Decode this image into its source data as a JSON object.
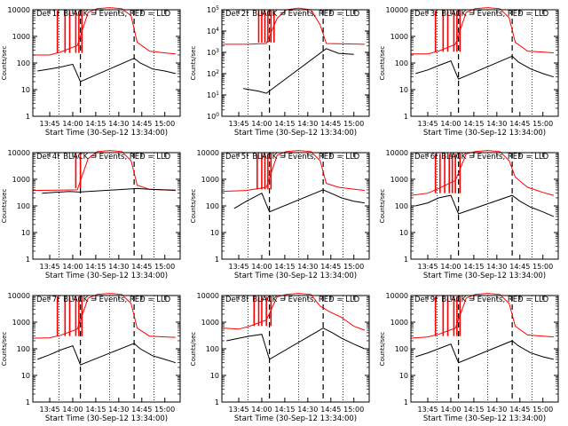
{
  "panel_title_suffix": "BLACK = Events, RED = LLD",
  "start_time": "Start Time (30-Sep-12 13:34:00)",
  "ylabel": "Counts/sec",
  "colors": {
    "events": "#000000",
    "lld": "#ff0000",
    "background": "#ffffff"
  },
  "chart_data": [
    {
      "type": "line",
      "title": "Det 1f",
      "xlabel": "Start Time (30-Sep-12 13:34:00)",
      "ylabel": "Counts/sec",
      "yscale": "log",
      "ylim": [
        1,
        10000
      ],
      "xlim": [
        "13:34",
        "15:10"
      ],
      "y_ticks": [
        "1",
        "10",
        "100",
        "1000",
        "10000"
      ],
      "x_ticks": [
        "13:45",
        "14:00",
        "14:15",
        "14:30",
        "14:45",
        "15:00"
      ],
      "dotted_markers": [
        "13:51",
        "14:24",
        "14:53"
      ],
      "dashed_markers": [
        "14:05",
        "14:40"
      ],
      "lld_series": [
        [
          "13:34",
          200
        ],
        [
          "13:45",
          200
        ],
        [
          "13:52",
          260
        ],
        [
          "14:03",
          450
        ],
        [
          "14:10",
          8000
        ],
        [
          "14:16",
          11000
        ],
        [
          "14:24",
          12000
        ],
        [
          "14:32",
          11000
        ],
        [
          "14:38",
          6000
        ],
        [
          "14:42",
          600
        ],
        [
          "14:50",
          280
        ],
        [
          "15:00",
          240
        ],
        [
          "15:07",
          220
        ]
      ],
      "events_series": [
        [
          "13:37",
          50
        ],
        [
          "13:45",
          60
        ],
        [
          "13:52",
          70
        ],
        [
          "14:00",
          90
        ],
        [
          "14:05",
          20
        ],
        [
          "14:40",
          150
        ],
        [
          "14:44",
          100
        ],
        [
          "14:52",
          60
        ],
        [
          "15:00",
          50
        ],
        [
          "15:07",
          40
        ]
      ],
      "lld_spikes": [
        "13:50",
        "13:55",
        "13:58",
        "14:02",
        "14:04",
        "14:06"
      ]
    },
    {
      "type": "line",
      "title": "Det 2f",
      "xlabel": "Start Time (30-Sep-12 13:34:00)",
      "ylabel": "Counts/sec",
      "yscale": "log",
      "ylim": [
        1,
        100000
      ],
      "xlim": [
        "13:34",
        "15:10"
      ],
      "y_ticks": [
        "10^0",
        "10^1",
        "10^2",
        "10^3",
        "10^4",
        "10^5"
      ],
      "x_ticks": [
        "13:45",
        "14:00",
        "14:15",
        "14:30",
        "14:45",
        "15:00"
      ],
      "dotted_markers": [
        "13:51",
        "14:24",
        "14:53"
      ],
      "dashed_markers": [
        "14:05",
        "14:40"
      ],
      "lld_series": [
        [
          "13:34",
          2400
        ],
        [
          "13:50",
          2400
        ],
        [
          "14:03",
          2600
        ],
        [
          "14:10",
          40000
        ],
        [
          "14:16",
          100000
        ],
        [
          "14:24",
          120000
        ],
        [
          "14:32",
          100000
        ],
        [
          "14:38",
          20000
        ],
        [
          "14:42",
          2600
        ],
        [
          "15:07",
          2400
        ]
      ],
      "events_series": [
        [
          "13:48",
          20
        ],
        [
          "13:58",
          15
        ],
        [
          "14:03",
          12
        ],
        [
          "14:42",
          1500
        ],
        [
          "14:50",
          900
        ],
        [
          "15:00",
          800
        ]
      ],
      "lld_spikes": [
        "13:58",
        "14:00",
        "14:02",
        "14:04",
        "14:06",
        "14:08"
      ]
    },
    {
      "type": "line",
      "title": "Det 3f",
      "xlabel": "Start Time (30-Sep-12 13:34:00)",
      "ylabel": "Counts/sec",
      "yscale": "log",
      "ylim": [
        1,
        10000
      ],
      "xlim": [
        "13:34",
        "15:10"
      ],
      "y_ticks": [
        "1",
        "10",
        "100",
        "1000",
        "10000"
      ],
      "x_ticks": [
        "13:45",
        "14:00",
        "14:15",
        "14:30",
        "14:45",
        "15:00"
      ],
      "dotted_markers": [
        "13:51",
        "14:24",
        "14:53"
      ],
      "dashed_markers": [
        "14:05",
        "14:40"
      ],
      "lld_series": [
        [
          "13:34",
          220
        ],
        [
          "13:45",
          220
        ],
        [
          "13:52",
          280
        ],
        [
          "14:03",
          500
        ],
        [
          "14:10",
          8000
        ],
        [
          "14:16",
          11000
        ],
        [
          "14:24",
          12000
        ],
        [
          "14:32",
          11000
        ],
        [
          "14:38",
          5000
        ],
        [
          "14:42",
          600
        ],
        [
          "14:50",
          280
        ],
        [
          "15:00",
          260
        ],
        [
          "15:07",
          240
        ]
      ],
      "events_series": [
        [
          "13:37",
          40
        ],
        [
          "13:45",
          55
        ],
        [
          "13:52",
          80
        ],
        [
          "14:00",
          120
        ],
        [
          "14:05",
          25
        ],
        [
          "14:40",
          180
        ],
        [
          "14:44",
          110
        ],
        [
          "14:52",
          60
        ],
        [
          "15:00",
          40
        ],
        [
          "15:07",
          30
        ]
      ],
      "lld_spikes": [
        "13:50",
        "13:55",
        "13:58",
        "14:02",
        "14:04",
        "14:06"
      ]
    },
    {
      "type": "line",
      "title": "Det 4f",
      "xlabel": "Start Time (30-Sep-12 13:34:00)",
      "ylabel": "Counts/sec",
      "yscale": "log",
      "ylim": [
        1,
        10000
      ],
      "xlim": [
        "13:34",
        "15:10"
      ],
      "y_ticks": [
        "1",
        "10",
        "100",
        "1000",
        "10000"
      ],
      "x_ticks": [
        "13:45",
        "14:00",
        "14:15",
        "14:30",
        "14:45",
        "15:00"
      ],
      "dotted_markers": [
        "13:51",
        "14:24",
        "14:53"
      ],
      "dashed_markers": [
        "14:05",
        "14:40"
      ],
      "lld_series": [
        [
          "13:34",
          380
        ],
        [
          "13:50",
          390
        ],
        [
          "14:03",
          400
        ],
        [
          "14:10",
          6000
        ],
        [
          "14:16",
          11000
        ],
        [
          "14:24",
          12000
        ],
        [
          "14:32",
          11000
        ],
        [
          "14:38",
          5000
        ],
        [
          "14:42",
          600
        ],
        [
          "14:50",
          420
        ],
        [
          "15:07",
          380
        ]
      ],
      "events_series": [
        [
          "13:40",
          300
        ],
        [
          "13:48",
          320
        ],
        [
          "13:58",
          350
        ],
        [
          "14:04",
          330
        ],
        [
          "14:42",
          450
        ],
        [
          "14:50",
          420
        ],
        [
          "15:00",
          400
        ],
        [
          "15:07",
          390
        ]
      ],
      "lld_spikes": [
        "14:02",
        "14:05"
      ]
    },
    {
      "type": "line",
      "title": "Det 5f",
      "xlabel": "Start Time (30-Sep-12 13:34:00)",
      "ylabel": "Counts/sec",
      "yscale": "log",
      "ylim": [
        1,
        10000
      ],
      "xlim": [
        "13:34",
        "15:10"
      ],
      "y_ticks": [
        "1",
        "10",
        "100",
        "1000",
        "10000"
      ],
      "x_ticks": [
        "13:45",
        "14:00",
        "14:15",
        "14:30",
        "14:45",
        "15:00"
      ],
      "dotted_markers": [
        "13:51",
        "14:24",
        "14:53"
      ],
      "dashed_markers": [
        "14:05",
        "14:40"
      ],
      "lld_series": [
        [
          "13:34",
          350
        ],
        [
          "13:50",
          380
        ],
        [
          "14:03",
          500
        ],
        [
          "14:10",
          8000
        ],
        [
          "14:16",
          11000
        ],
        [
          "14:24",
          12000
        ],
        [
          "14:32",
          11000
        ],
        [
          "14:38",
          5000
        ],
        [
          "14:42",
          700
        ],
        [
          "14:50",
          500
        ],
        [
          "15:07",
          380
        ]
      ],
      "events_series": [
        [
          "13:42",
          80
        ],
        [
          "13:50",
          150
        ],
        [
          "14:00",
          300
        ],
        [
          "14:05",
          60
        ],
        [
          "14:40",
          400
        ],
        [
          "14:45",
          300
        ],
        [
          "14:52",
          200
        ],
        [
          "15:00",
          150
        ],
        [
          "15:07",
          130
        ]
      ],
      "lld_spikes": [
        "13:57",
        "14:00",
        "14:02",
        "14:04",
        "14:06"
      ]
    },
    {
      "type": "line",
      "title": "Det 6f",
      "xlabel": "Start Time (30-Sep-12 13:34:00)",
      "ylabel": "Counts/sec",
      "yscale": "log",
      "ylim": [
        1,
        10000
      ],
      "xlim": [
        "13:34",
        "15:10"
      ],
      "y_ticks": [
        "1",
        "10",
        "100",
        "1000",
        "10000"
      ],
      "x_ticks": [
        "13:45",
        "14:00",
        "14:15",
        "14:30",
        "14:45",
        "15:00"
      ],
      "dotted_markers": [
        "13:51",
        "14:24",
        "14:53"
      ],
      "dashed_markers": [
        "14:05",
        "14:40"
      ],
      "lld_series": [
        [
          "13:34",
          250
        ],
        [
          "13:45",
          300
        ],
        [
          "13:52",
          450
        ],
        [
          "14:03",
          900
        ],
        [
          "14:10",
          9000
        ],
        [
          "14:16",
          11000
        ],
        [
          "14:24",
          12000
        ],
        [
          "14:32",
          11000
        ],
        [
          "14:38",
          5000
        ],
        [
          "14:42",
          1200
        ],
        [
          "14:50",
          500
        ],
        [
          "15:00",
          320
        ],
        [
          "15:07",
          250
        ]
      ],
      "events_series": [
        [
          "13:37",
          100
        ],
        [
          "13:45",
          130
        ],
        [
          "13:52",
          200
        ],
        [
          "14:00",
          250
        ],
        [
          "14:05",
          50
        ],
        [
          "14:40",
          250
        ],
        [
          "14:45",
          150
        ],
        [
          "14:52",
          90
        ],
        [
          "15:00",
          60
        ],
        [
          "15:07",
          40
        ]
      ],
      "lld_spikes": [
        "13:50",
        "13:53",
        "13:56",
        "13:59",
        "14:01",
        "14:03",
        "14:06"
      ]
    },
    {
      "type": "line",
      "title": "Det 7f",
      "xlabel": "Start Time (30-Sep-12 13:34:00)",
      "ylabel": "Counts/sec",
      "yscale": "log",
      "ylim": [
        1,
        10000
      ],
      "xlim": [
        "13:34",
        "15:10"
      ],
      "y_ticks": [
        "1",
        "10",
        "100",
        "1000",
        "10000"
      ],
      "x_ticks": [
        "13:45",
        "14:00",
        "14:15",
        "14:30",
        "14:45",
        "15:00"
      ],
      "dotted_markers": [
        "13:51",
        "14:24",
        "14:53"
      ],
      "dashed_markers": [
        "14:05",
        "14:40"
      ],
      "lld_series": [
        [
          "13:34",
          250
        ],
        [
          "13:45",
          260
        ],
        [
          "13:52",
          320
        ],
        [
          "14:03",
          550
        ],
        [
          "14:10",
          8000
        ],
        [
          "14:16",
          11000
        ],
        [
          "14:24",
          12000
        ],
        [
          "14:32",
          11000
        ],
        [
          "14:38",
          5000
        ],
        [
          "14:42",
          600
        ],
        [
          "14:50",
          300
        ],
        [
          "15:00",
          280
        ],
        [
          "15:07",
          270
        ]
      ],
      "events_series": [
        [
          "13:37",
          40
        ],
        [
          "13:45",
          60
        ],
        [
          "13:52",
          90
        ],
        [
          "14:00",
          130
        ],
        [
          "14:05",
          25
        ],
        [
          "14:40",
          160
        ],
        [
          "14:44",
          100
        ],
        [
          "14:52",
          55
        ],
        [
          "15:00",
          40
        ],
        [
          "15:07",
          30
        ]
      ],
      "lld_spikes": [
        "13:50",
        "13:55",
        "13:58",
        "14:02",
        "14:04",
        "14:06"
      ]
    },
    {
      "type": "line",
      "title": "Det 8f",
      "xlabel": "Start Time (30-Sep-12 13:34:00)",
      "ylabel": "Counts/sec",
      "yscale": "log",
      "ylim": [
        1,
        10000
      ],
      "xlim": [
        "13:34",
        "15:10"
      ],
      "y_ticks": [
        "1",
        "10",
        "100",
        "1000",
        "10000"
      ],
      "x_ticks": [
        "13:45",
        "14:00",
        "14:15",
        "14:30",
        "14:45",
        "15:00"
      ],
      "dotted_markers": [
        "13:51",
        "14:24",
        "14:53"
      ],
      "dashed_markers": [
        "14:05",
        "14:40"
      ],
      "lld_series": [
        [
          "13:34",
          600
        ],
        [
          "13:45",
          550
        ],
        [
          "13:52",
          700
        ],
        [
          "14:03",
          1200
        ],
        [
          "14:10",
          9000
        ],
        [
          "14:16",
          11000
        ],
        [
          "14:24",
          12000
        ],
        [
          "14:32",
          11000
        ],
        [
          "14:38",
          4000
        ],
        [
          "14:44",
          2500
        ],
        [
          "14:52",
          1500
        ],
        [
          "15:00",
          700
        ],
        [
          "15:07",
          500
        ]
      ],
      "events_series": [
        [
          "13:37",
          200
        ],
        [
          "13:45",
          250
        ],
        [
          "13:52",
          300
        ],
        [
          "14:00",
          350
        ],
        [
          "14:05",
          40
        ],
        [
          "14:40",
          600
        ],
        [
          "14:46",
          400
        ],
        [
          "14:52",
          250
        ],
        [
          "15:00",
          150
        ],
        [
          "15:07",
          100
        ]
      ],
      "lld_spikes": [
        "13:55",
        "13:58",
        "14:00",
        "14:03",
        "14:06"
      ]
    },
    {
      "type": "line",
      "title": "Det 9f",
      "xlabel": "Start Time (30-Sep-12 13:34:00)",
      "ylabel": "Counts/sec",
      "yscale": "log",
      "ylim": [
        1,
        10000
      ],
      "xlim": [
        "13:34",
        "15:10"
      ],
      "y_ticks": [
        "1",
        "10",
        "100",
        "1000",
        "10000"
      ],
      "x_ticks": [
        "13:45",
        "14:00",
        "14:15",
        "14:30",
        "14:45",
        "15:00"
      ],
      "dotted_markers": [
        "13:51",
        "14:24",
        "14:53"
      ],
      "dashed_markers": [
        "14:05",
        "14:40"
      ],
      "lld_series": [
        [
          "13:34",
          250
        ],
        [
          "13:45",
          280
        ],
        [
          "13:52",
          350
        ],
        [
          "14:03",
          600
        ],
        [
          "14:10",
          8000
        ],
        [
          "14:16",
          11000
        ],
        [
          "14:24",
          12000
        ],
        [
          "14:32",
          11000
        ],
        [
          "14:38",
          5000
        ],
        [
          "14:42",
          700
        ],
        [
          "14:50",
          330
        ],
        [
          "15:00",
          300
        ],
        [
          "15:07",
          280
        ]
      ],
      "events_series": [
        [
          "13:37",
          50
        ],
        [
          "13:45",
          70
        ],
        [
          "13:52",
          100
        ],
        [
          "14:00",
          150
        ],
        [
          "14:05",
          30
        ],
        [
          "14:40",
          200
        ],
        [
          "14:44",
          130
        ],
        [
          "14:52",
          70
        ],
        [
          "15:00",
          50
        ],
        [
          "15:07",
          40
        ]
      ],
      "lld_spikes": [
        "13:50",
        "13:55",
        "13:58",
        "14:02",
        "14:04",
        "14:06"
      ]
    }
  ]
}
